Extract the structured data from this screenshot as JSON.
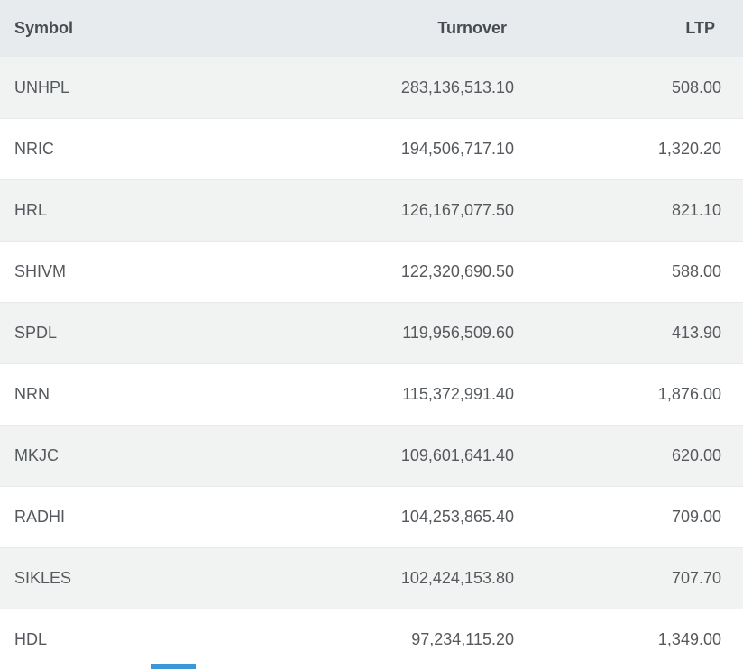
{
  "colors": {
    "accent": "#3a97d8",
    "header_bg": "#e8ebee",
    "row_alt_bg": "#f1f2f2"
  },
  "table": {
    "columns": [
      {
        "key": "symbol",
        "label": "Symbol"
      },
      {
        "key": "turnover",
        "label": "Turnover"
      },
      {
        "key": "ltp",
        "label": "LTP"
      }
    ],
    "rows": [
      {
        "symbol": "UNHPL",
        "turnover": "283,136,513.10",
        "ltp": "508.00"
      },
      {
        "symbol": "NRIC",
        "turnover": "194,506,717.10",
        "ltp": "1,320.20"
      },
      {
        "symbol": "HRL",
        "turnover": "126,167,077.50",
        "ltp": "821.10"
      },
      {
        "symbol": "SHIVM",
        "turnover": "122,320,690.50",
        "ltp": "588.00"
      },
      {
        "symbol": "SPDL",
        "turnover": "119,956,509.60",
        "ltp": "413.90"
      },
      {
        "symbol": "NRN",
        "turnover": "115,372,991.40",
        "ltp": "1,876.00"
      },
      {
        "symbol": "MKJC",
        "turnover": "109,601,641.40",
        "ltp": "620.00"
      },
      {
        "symbol": "RADHI",
        "turnover": "104,253,865.40",
        "ltp": "709.00"
      },
      {
        "symbol": "SIKLES",
        "turnover": "102,424,153.80",
        "ltp": "707.70"
      },
      {
        "symbol": "HDL",
        "turnover": "97,234,115.20",
        "ltp": "1,349.00"
      }
    ]
  }
}
